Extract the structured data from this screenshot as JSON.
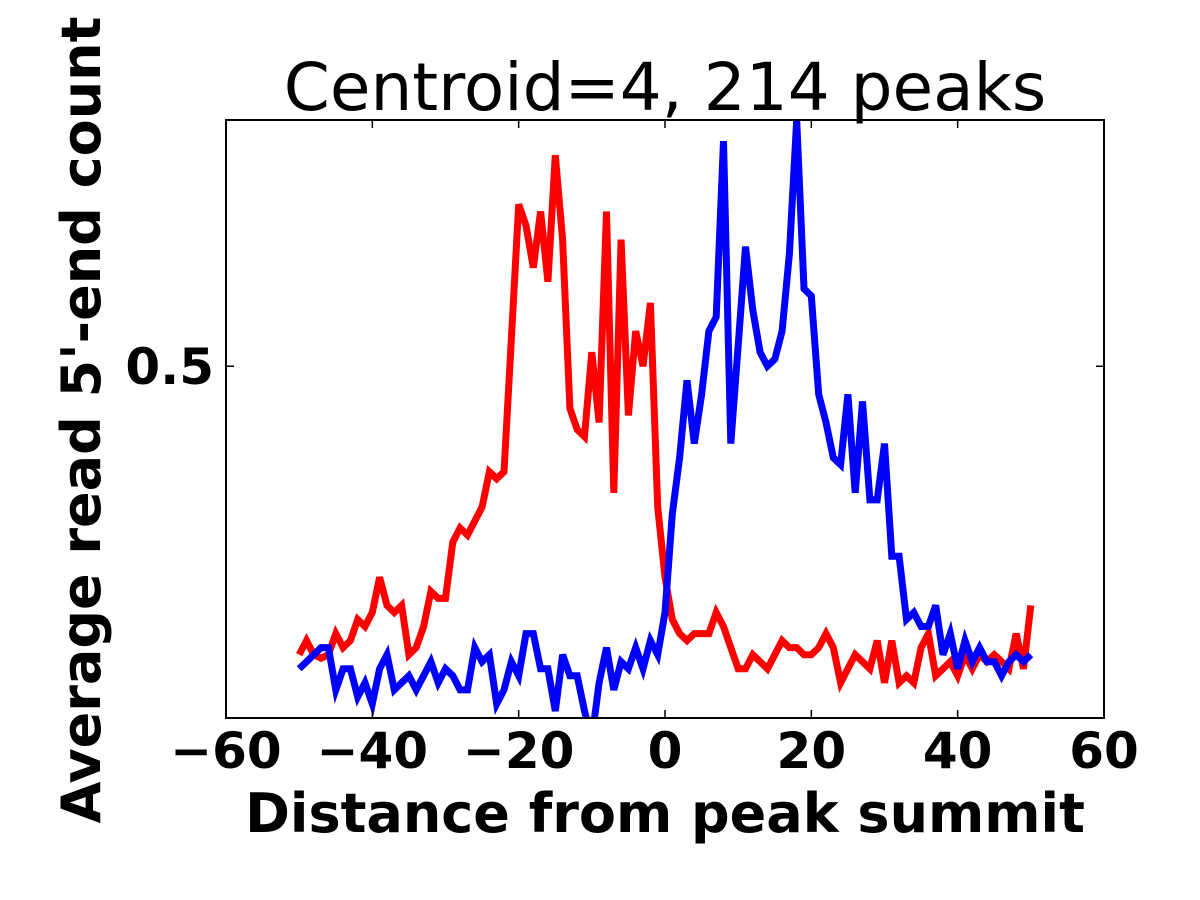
{
  "chart_data": {
    "type": "line",
    "title": "Centroid=4, 214 peaks",
    "xlabel": "Distance from peak summit",
    "ylabel": "Average read 5'-end count",
    "xlim": [
      -60,
      60
    ],
    "ylim": [
      0.0,
      0.85
    ],
    "xticks": [
      -60,
      -40,
      -20,
      0,
      20,
      40,
      60
    ],
    "xtick_labels": [
      "−60",
      "−40",
      "−20",
      "0",
      "20",
      "40",
      "60"
    ],
    "yticks": [
      0.5
    ],
    "ytick_labels": [
      "0.5"
    ],
    "grid": false,
    "legend": "none",
    "series": [
      {
        "color": "#ff0000",
        "x": [
          -50,
          -49,
          -48,
          -47,
          -46,
          -45,
          -44,
          -43,
          -42,
          -41,
          -40,
          -39,
          -38,
          -37,
          -36,
          -35,
          -34,
          -33,
          -32,
          -31,
          -30,
          -29,
          -28,
          -27,
          -26,
          -25,
          -24,
          -23,
          -22,
          -21,
          -20,
          -19,
          -18,
          -17,
          -16,
          -15,
          -14,
          -13,
          -12,
          -11,
          -10,
          -9,
          -8,
          -7,
          -6,
          -5,
          -4,
          -3,
          -2,
          -1,
          0,
          1,
          2,
          3,
          4,
          5,
          6,
          7,
          8,
          9,
          10,
          11,
          12,
          13,
          14,
          15,
          16,
          17,
          18,
          19,
          20,
          21,
          22,
          23,
          24,
          25,
          26,
          27,
          28,
          29,
          30,
          31,
          32,
          33,
          34,
          35,
          36,
          37,
          38,
          39,
          40,
          41,
          42,
          43,
          44,
          45,
          46,
          47,
          48,
          49,
          50
        ],
        "values": [
          0.09,
          0.11,
          0.09,
          0.085,
          0.09,
          0.12,
          0.1,
          0.11,
          0.14,
          0.13,
          0.15,
          0.2,
          0.16,
          0.15,
          0.16,
          0.09,
          0.1,
          0.13,
          0.18,
          0.17,
          0.17,
          0.25,
          0.27,
          0.26,
          0.28,
          0.3,
          0.35,
          0.34,
          0.35,
          0.54,
          0.73,
          0.7,
          0.64,
          0.72,
          0.62,
          0.8,
          0.68,
          0.44,
          0.41,
          0.4,
          0.52,
          0.42,
          0.72,
          0.32,
          0.68,
          0.43,
          0.55,
          0.5,
          0.59,
          0.3,
          0.2,
          0.14,
          0.12,
          0.11,
          0.12,
          0.12,
          0.12,
          0.15,
          0.13,
          0.1,
          0.07,
          0.07,
          0.09,
          0.08,
          0.07,
          0.09,
          0.11,
          0.1,
          0.1,
          0.09,
          0.09,
          0.1,
          0.12,
          0.1,
          0.05,
          0.07,
          0.09,
          0.08,
          0.07,
          0.11,
          0.05,
          0.11,
          0.05,
          0.06,
          0.05,
          0.1,
          0.12,
          0.06,
          0.07,
          0.08,
          0.06,
          0.09,
          0.07,
          0.09,
          0.08,
          0.09,
          0.08,
          0.07,
          0.12,
          0.07,
          0.16
        ]
      },
      {
        "color": "#0000ff",
        "x": [
          -50,
          -49,
          -48,
          -47,
          -46,
          -45,
          -44,
          -43,
          -42,
          -41,
          -40,
          -39,
          -38,
          -37,
          -36,
          -35,
          -34,
          -33,
          -32,
          -31,
          -30,
          -29,
          -28,
          -27,
          -26,
          -25,
          -24,
          -23,
          -22,
          -21,
          -20,
          -19,
          -18,
          -17,
          -16,
          -15,
          -14,
          -13,
          -12,
          -11,
          -10,
          -9,
          -8,
          -7,
          -6,
          -5,
          -4,
          -3,
          -2,
          -1,
          0,
          1,
          2,
          3,
          4,
          5,
          6,
          7,
          8,
          9,
          10,
          11,
          12,
          13,
          14,
          15,
          16,
          17,
          18,
          19,
          20,
          21,
          22,
          23,
          24,
          25,
          26,
          27,
          28,
          29,
          30,
          31,
          32,
          33,
          34,
          35,
          36,
          37,
          38,
          39,
          40,
          41,
          42,
          43,
          44,
          45,
          46,
          47,
          48,
          49,
          50
        ],
        "values": [
          0.07,
          0.08,
          0.09,
          0.1,
          0.1,
          0.04,
          0.07,
          0.07,
          0.03,
          0.05,
          0.02,
          0.07,
          0.09,
          0.04,
          0.05,
          0.06,
          0.04,
          0.06,
          0.08,
          0.05,
          0.07,
          0.06,
          0.04,
          0.04,
          0.1,
          0.08,
          0.09,
          0.02,
          0.04,
          0.08,
          0.06,
          0.12,
          0.12,
          0.07,
          0.07,
          0.01,
          0.09,
          0.06,
          0.06,
          0.01,
          -0.03,
          0.05,
          0.1,
          0.04,
          0.08,
          0.07,
          0.1,
          0.07,
          0.11,
          0.09,
          0.15,
          0.29,
          0.37,
          0.48,
          0.39,
          0.46,
          0.55,
          0.57,
          0.82,
          0.39,
          0.53,
          0.67,
          0.58,
          0.52,
          0.5,
          0.51,
          0.55,
          0.66,
          0.85,
          0.61,
          0.6,
          0.46,
          0.42,
          0.37,
          0.36,
          0.46,
          0.32,
          0.45,
          0.31,
          0.31,
          0.39,
          0.23,
          0.23,
          0.14,
          0.15,
          0.13,
          0.13,
          0.16,
          0.09,
          0.12,
          0.07,
          0.11,
          0.08,
          0.1,
          0.08,
          0.08,
          0.06,
          0.08,
          0.09,
          0.08,
          0.09
        ]
      }
    ]
  }
}
